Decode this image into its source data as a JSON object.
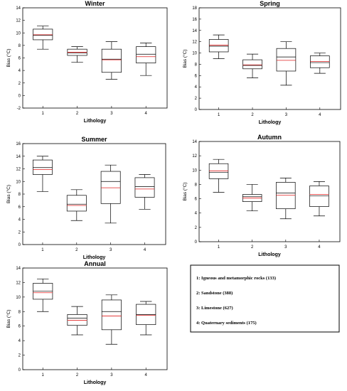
{
  "chart_data": [
    {
      "type": "box",
      "title": "Winter",
      "xlabel": "Lithology",
      "ylabel": "Bias (°C)",
      "ylim": [
        -2,
        14
      ],
      "yticks": [
        -2,
        0,
        2,
        4,
        6,
        8,
        10,
        12,
        14
      ],
      "categories": [
        "1",
        "2",
        "3",
        "4"
      ],
      "boxes": [
        {
          "min": 7.4,
          "q1": 8.9,
          "median": 9.6,
          "mean": 9.7,
          "q3": 10.6,
          "max": 11.1
        },
        {
          "min": 5.3,
          "q1": 6.4,
          "median": 6.8,
          "mean": 6.9,
          "q3": 7.4,
          "max": 7.8
        },
        {
          "min": 2.6,
          "q1": 3.7,
          "median": 5.8,
          "mean": 5.7,
          "q3": 7.4,
          "max": 8.6
        },
        {
          "min": 3.2,
          "q1": 5.2,
          "median": 6.6,
          "mean": 6.2,
          "q3": 7.8,
          "max": 8.4
        }
      ]
    },
    {
      "type": "box",
      "title": "Spring",
      "xlabel": "Lithology",
      "ylabel": "Bias (°C)",
      "ylim": [
        0,
        18
      ],
      "yticks": [
        0,
        2,
        4,
        6,
        8,
        10,
        12,
        14,
        16,
        18
      ],
      "categories": [
        "1",
        "2",
        "3",
        "4"
      ],
      "boxes": [
        {
          "min": 9.0,
          "q1": 10.2,
          "median": 11.2,
          "mean": 11.4,
          "q3": 12.4,
          "max": 13.2
        },
        {
          "min": 5.6,
          "q1": 7.2,
          "median": 7.8,
          "mean": 7.9,
          "q3": 8.8,
          "max": 9.8
        },
        {
          "min": 4.3,
          "q1": 6.8,
          "median": 9.3,
          "mean": 8.7,
          "q3": 10.8,
          "max": 12.0
        },
        {
          "min": 6.4,
          "q1": 7.4,
          "median": 8.3,
          "mean": 8.5,
          "q3": 9.5,
          "max": 10.0
        }
      ]
    },
    {
      "type": "box",
      "title": "Summer",
      "xlabel": "Lithology",
      "ylabel": "Bias (°C)",
      "ylim": [
        0,
        16
      ],
      "yticks": [
        0,
        2,
        4,
        6,
        8,
        10,
        12,
        14,
        16
      ],
      "categories": [
        "1",
        "2",
        "3",
        "4"
      ],
      "boxes": [
        {
          "min": 8.4,
          "q1": 11.1,
          "median": 12.2,
          "mean": 11.9,
          "q3": 13.4,
          "max": 14.0
        },
        {
          "min": 3.8,
          "q1": 5.3,
          "median": 6.4,
          "mean": 6.2,
          "q3": 7.8,
          "max": 8.7
        },
        {
          "min": 3.4,
          "q1": 6.5,
          "median": 10.0,
          "mean": 9.0,
          "q3": 11.6,
          "max": 12.6
        },
        {
          "min": 5.6,
          "q1": 7.5,
          "median": 9.2,
          "mean": 8.8,
          "q3": 10.6,
          "max": 11.1
        }
      ]
    },
    {
      "type": "box",
      "title": "Autumn",
      "xlabel": "Lithology",
      "ylabel": "Bias (°C)",
      "ylim": [
        0,
        14
      ],
      "yticks": [
        0,
        2,
        4,
        6,
        8,
        10,
        12,
        14
      ],
      "categories": [
        "1",
        "2",
        "3",
        "4"
      ],
      "boxes": [
        {
          "min": 6.9,
          "q1": 8.8,
          "median": 9.7,
          "mean": 9.9,
          "q3": 10.9,
          "max": 11.5
        },
        {
          "min": 4.3,
          "q1": 5.6,
          "median": 6.3,
          "mean": 6.1,
          "q3": 6.6,
          "max": 8.0
        },
        {
          "min": 3.2,
          "q1": 4.6,
          "median": 6.8,
          "mean": 6.5,
          "q3": 8.3,
          "max": 8.9
        },
        {
          "min": 3.6,
          "q1": 4.9,
          "median": 6.4,
          "mean": 6.6,
          "q3": 7.8,
          "max": 8.4
        }
      ]
    },
    {
      "type": "box",
      "title": "Annual",
      "xlabel": "Lithology",
      "ylabel": "Bias (°C)",
      "ylim": [
        0,
        14
      ],
      "yticks": [
        0,
        2,
        4,
        6,
        8,
        10,
        12,
        14
      ],
      "categories": [
        "1",
        "2",
        "3",
        "4"
      ],
      "boxes": [
        {
          "min": 8.0,
          "q1": 9.7,
          "median": 10.8,
          "mean": 10.6,
          "q3": 11.9,
          "max": 12.5
        },
        {
          "min": 4.8,
          "q1": 6.1,
          "median": 7.1,
          "mean": 6.8,
          "q3": 7.6,
          "max": 8.7
        },
        {
          "min": 3.5,
          "q1": 5.5,
          "median": 8.0,
          "mean": 7.4,
          "q3": 9.6,
          "max": 10.3
        },
        {
          "min": 4.8,
          "q1": 6.2,
          "median": 7.6,
          "mean": 7.5,
          "q3": 9.0,
          "max": 9.4
        }
      ]
    }
  ],
  "legend": [
    "1: Igneous and metamorphic rocks (133)",
    "2: Sandstone (388)",
    "3: Limestone (627)",
    "4: Quaternary sediments (175)"
  ],
  "colors": {
    "box": "#000000",
    "median": "#000000",
    "mean": "#e02020"
  }
}
